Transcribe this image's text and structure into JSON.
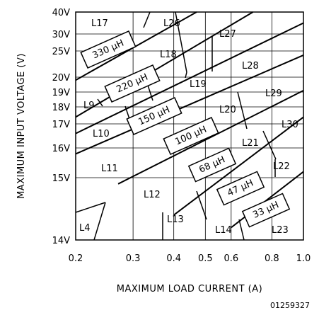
{
  "chart_data": {
    "type": "line",
    "xlabel": "MAXIMUM LOAD CURRENT (A)",
    "ylabel": "MAXIMUM INPUT VOLTAGE (V)",
    "x_scale": "log",
    "xlim": [
      0.2,
      1.0
    ],
    "ylim": [
      14,
      40
    ],
    "x_ticks": [
      "0.2",
      "0.3",
      "0.4",
      "0.5",
      "0.6",
      "0.8",
      "1.0"
    ],
    "y_ticks": [
      "14V",
      "15V",
      "16V",
      "17V",
      "18V",
      "19V",
      "20V",
      "25V",
      "30V",
      "40V"
    ],
    "grid": true,
    "series": [
      {
        "name": "330 µH",
        "points": [
          [
            0.2,
            19.8
          ],
          [
            0.47,
            40
          ]
        ]
      },
      {
        "name": "220 µH",
        "points": [
          [
            0.2,
            17.4
          ],
          [
            0.7,
            40
          ]
        ]
      },
      {
        "name": "150 µH",
        "points": [
          [
            0.2,
            16.6
          ],
          [
            1.0,
            35
          ]
        ]
      },
      {
        "name": "100 µH",
        "points": [
          [
            0.2,
            15.8
          ],
          [
            1.0,
            24.2
          ]
        ]
      },
      {
        "name": "68 µH",
        "points": [
          [
            0.27,
            14.9
          ],
          [
            1.0,
            19.1
          ]
        ]
      },
      {
        "name": "47 µH",
        "points": [
          [
            0.4,
            14.4
          ],
          [
            1.0,
            17.4
          ]
        ]
      },
      {
        "name": "33 µH",
        "points": [
          [
            0.6,
            14.2
          ],
          [
            1.0,
            15.2
          ]
        ]
      }
    ],
    "regions": [
      "L17",
      "L26",
      "L27",
      "L18",
      "L28",
      "L19",
      "L29",
      "L9",
      "L20",
      "L30",
      "L10",
      "L21",
      "L11",
      "L22",
      "L12",
      "L13",
      "L4",
      "L14",
      "L23"
    ],
    "figure_id": "01259327"
  }
}
